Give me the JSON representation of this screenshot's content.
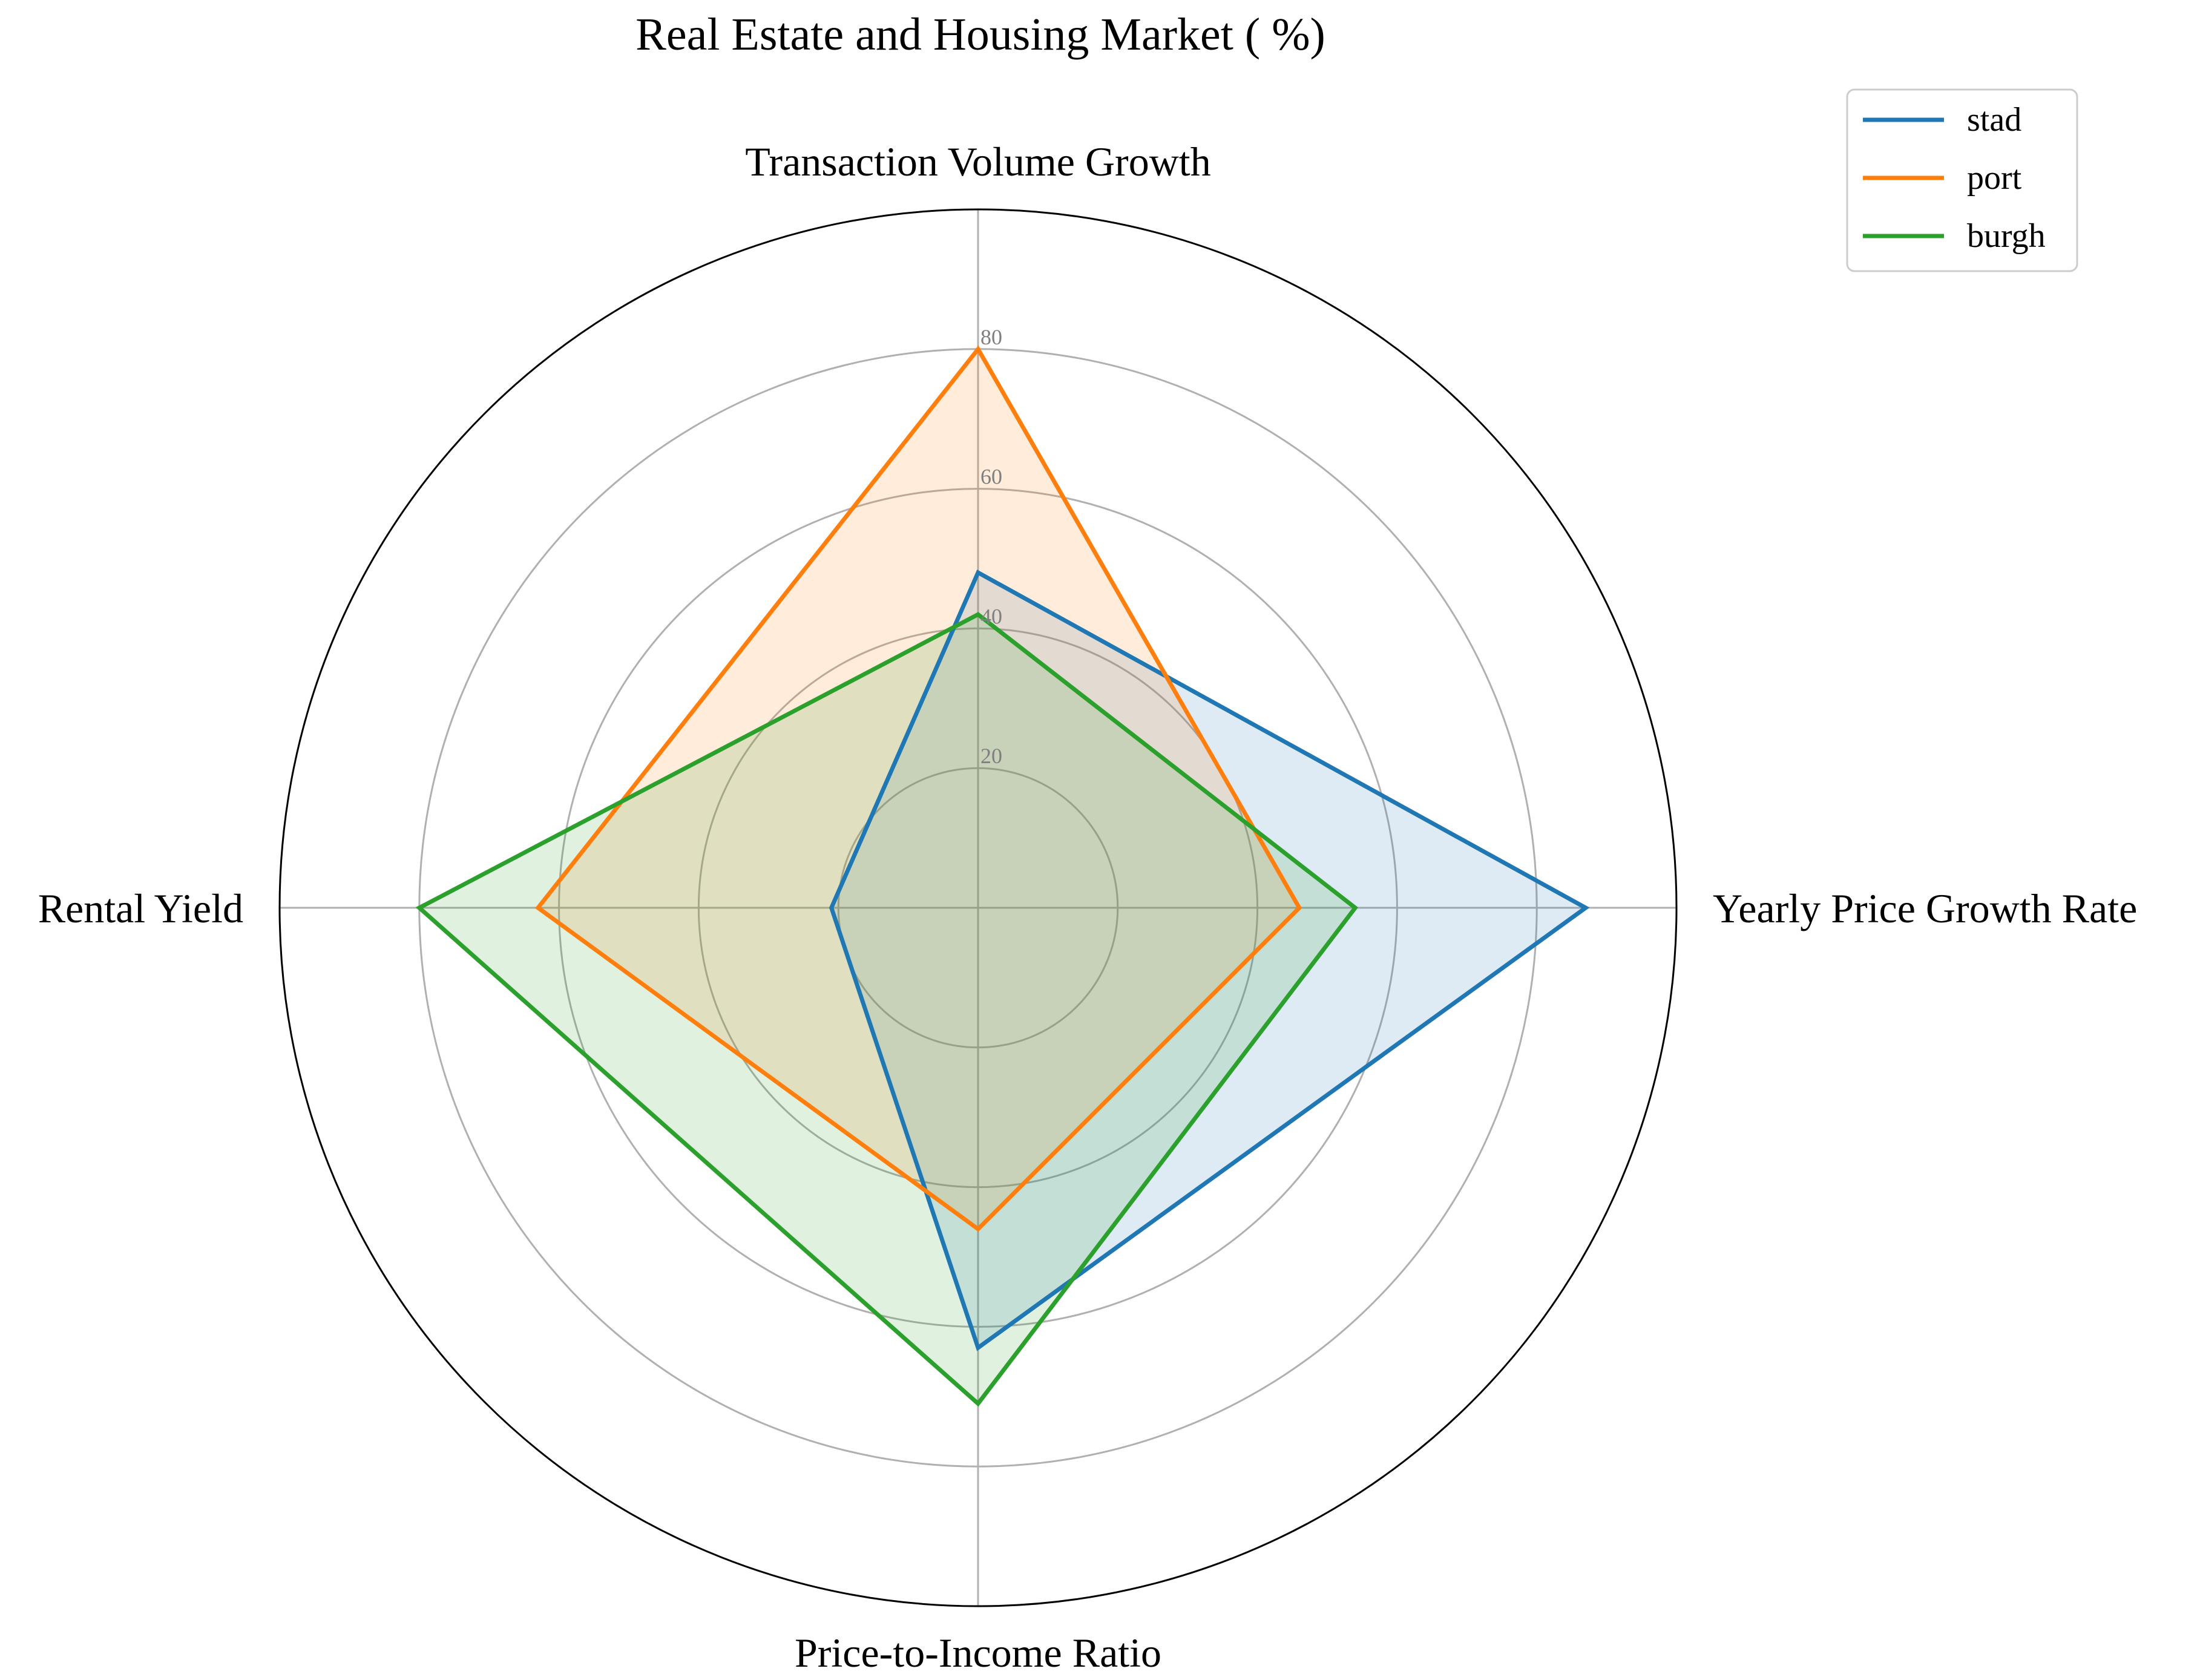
{
  "chart_data": {
    "type": "radar",
    "title": "Real Estate and Housing Market ( %)",
    "axes": [
      "Transaction Volume Growth",
      "Yearly Price Growth Rate",
      "Price-to-Income Ratio",
      "Rental Yield"
    ],
    "rmax": 100,
    "ticks": [
      20,
      40,
      60,
      80
    ],
    "tick_labels": [
      "20",
      "40",
      "60",
      "80"
    ],
    "grid": true,
    "legend_position": "top-right",
    "series": [
      {
        "name": "stad",
        "color": "#1f77b4",
        "values": [
          48,
          87,
          63,
          21
        ]
      },
      {
        "name": "port",
        "color": "#ff7f0e",
        "values": [
          80,
          46,
          46,
          63
        ]
      },
      {
        "name": "burgh",
        "color": "#2ca02c",
        "values": [
          42,
          54,
          71,
          80
        ]
      }
    ]
  }
}
